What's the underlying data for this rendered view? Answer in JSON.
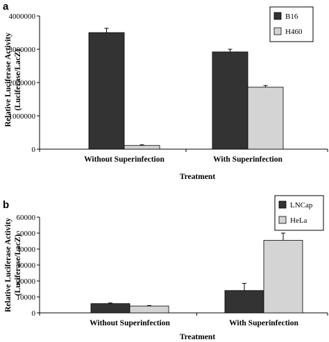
{
  "chart_data": [
    {
      "type": "bar",
      "panel": "a",
      "categories": [
        "Without Superinfection",
        "With Superinfection"
      ],
      "series": [
        {
          "name": "B16",
          "color": "#333333",
          "values": [
            3500000,
            2920000
          ],
          "errors": [
            130000,
            80000
          ]
        },
        {
          "name": "H460",
          "color": "#d4d4d4",
          "values": [
            110000,
            1860000
          ],
          "errors": [
            20000,
            50000
          ]
        }
      ],
      "xlabel": "Treatment",
      "ylabel": [
        "Relative Luciferase Activity",
        "(Luciferase/LacZ)"
      ],
      "ylim": [
        0,
        4000000
      ],
      "yticks": [
        "0",
        "1000000",
        "2000000",
        "3000000",
        "4000000"
      ],
      "legend_position": "top-right",
      "grid": false
    },
    {
      "type": "bar",
      "panel": "b",
      "categories": [
        "Without Superinfection",
        "With Superinfection"
      ],
      "series": [
        {
          "name": "LNCap",
          "color": "#333333",
          "values": [
            5800,
            14000
          ],
          "errors": [
            400,
            4500
          ]
        },
        {
          "name": "HeLa",
          "color": "#d4d4d4",
          "values": [
            4300,
            45500
          ],
          "errors": [
            300,
            4500
          ]
        }
      ],
      "xlabel": "Treatment",
      "ylabel": [
        "Relative Luciferase Activity",
        "(Luciferase/LacZ)"
      ],
      "ylim": [
        0,
        60000
      ],
      "yticks": [
        "0",
        "10000",
        "20000",
        "30000",
        "40000",
        "50000",
        "60000"
      ],
      "legend_position": "top-right",
      "grid": false
    }
  ]
}
